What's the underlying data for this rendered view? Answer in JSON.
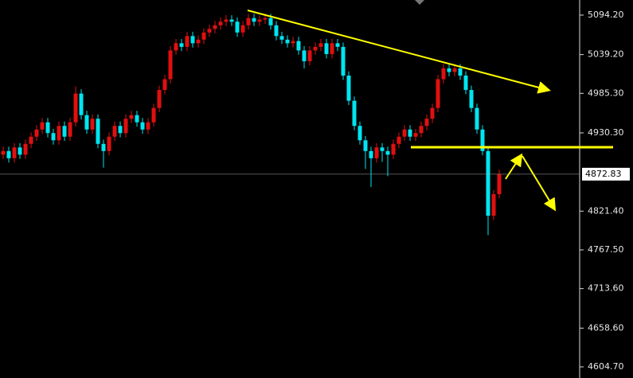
{
  "chart_data": {
    "type": "candlestick",
    "open": [
      4900,
      4905,
      4895,
      4910,
      4900,
      4915,
      4925,
      4935,
      4945,
      4930,
      4920,
      4940,
      4925,
      4945,
      4985,
      4955,
      4935,
      4950,
      4915,
      4905,
      4925,
      4940,
      4930,
      4950,
      4955,
      4945,
      4935,
      4945,
      4965,
      4990,
      5005,
      5045,
      5055,
      5050,
      5065,
      5055,
      5060,
      5070,
      5075,
      5080,
      5085,
      5088,
      5085,
      5070,
      5080,
      5090,
      5085,
      5088,
      5090,
      5080,
      5065,
      5060,
      5055,
      5058,
      5045,
      5030,
      5045,
      5050,
      5055,
      5040,
      5055,
      5050,
      5010,
      4975,
      4940,
      4920,
      4905,
      4895,
      4910,
      4905,
      4900,
      4915,
      4925,
      4935,
      4925,
      4930,
      4940,
      4950,
      4965,
      5005,
      5020,
      5015,
      5020,
      5010,
      4990,
      4965,
      4935,
      4905,
      4815,
      4845
    ],
    "high": [
      4911,
      4911,
      4916,
      4916,
      4921,
      4931,
      4941,
      4951,
      4951,
      4936,
      4946,
      4946,
      4951,
      4995,
      4991,
      4961,
      4956,
      4956,
      4921,
      4931,
      4946,
      4946,
      4956,
      4961,
      4961,
      4951,
      4951,
      4971,
      4996,
      5011,
      5051,
      5061,
      5061,
      5071,
      5071,
      5066,
      5076,
      5081,
      5086,
      5091,
      5094,
      5094,
      5091,
      5086,
      5096,
      5096,
      5094,
      5096,
      5096,
      5086,
      5071,
      5066,
      5064,
      5064,
      5051,
      5051,
      5056,
      5061,
      5061,
      5061,
      5061,
      5056,
      5016,
      4981,
      4946,
      4926,
      4911,
      4916,
      4916,
      4911,
      4921,
      4931,
      4941,
      4941,
      4936,
      4946,
      4956,
      4971,
      5011,
      5026,
      5026,
      5026,
      5026,
      5016,
      4996,
      4971,
      4941,
      4911,
      4851,
      4879
    ],
    "low": [
      4894,
      4889,
      4889,
      4894,
      4894,
      4909,
      4919,
      4929,
      4924,
      4914,
      4914,
      4919,
      4919,
      4939,
      4949,
      4929,
      4929,
      4909,
      4882,
      4899,
      4919,
      4924,
      4924,
      4944,
      4939,
      4929,
      4929,
      4939,
      4959,
      4984,
      4999,
      5039,
      5044,
      5044,
      5049,
      5049,
      5054,
      5064,
      5069,
      5074,
      5079,
      5079,
      5064,
      5064,
      5074,
      5079,
      5079,
      5082,
      5074,
      5059,
      5054,
      5049,
      5049,
      5039,
      5020,
      5024,
      5039,
      5044,
      5034,
      5034,
      5044,
      5004,
      4969,
      4934,
      4914,
      4880,
      4855,
      4889,
      4890,
      4870,
      4894,
      4909,
      4919,
      4919,
      4919,
      4924,
      4934,
      4944,
      4959,
      4999,
      5009,
      5009,
      5004,
      4984,
      4959,
      4929,
      4899,
      4788,
      4809,
      4839
    ],
    "close": [
      4905,
      4895,
      4910,
      4900,
      4915,
      4925,
      4935,
      4945,
      4930,
      4920,
      4940,
      4925,
      4945,
      4985,
      4955,
      4935,
      4950,
      4915,
      4905,
      4925,
      4940,
      4930,
      4950,
      4955,
      4945,
      4935,
      4945,
      4965,
      4990,
      5005,
      5045,
      5055,
      5050,
      5065,
      5055,
      5060,
      5070,
      5075,
      5080,
      5085,
      5088,
      5085,
      5070,
      5080,
      5090,
      5085,
      5088,
      5090,
      5080,
      5065,
      5060,
      5055,
      5058,
      5045,
      5030,
      5045,
      5050,
      5055,
      5040,
      5055,
      5050,
      5010,
      4975,
      4940,
      4920,
      4905,
      4895,
      4910,
      4905,
      4900,
      4915,
      4925,
      4935,
      4925,
      4930,
      4940,
      4950,
      4965,
      5005,
      5020,
      5015,
      5020,
      5010,
      4990,
      4965,
      4935,
      4905,
      4815,
      4845,
      4872.83
    ],
    "up_color": "#e01010",
    "down_color": "#00e5f0",
    "ylim": [
      4589.2,
      5115.2
    ],
    "yticks": [
      {
        "value": 5094.2,
        "label": "5094.20"
      },
      {
        "value": 5039.2,
        "label": "5039.20"
      },
      {
        "value": 4985.3,
        "label": "4985.30"
      },
      {
        "value": 4930.3,
        "label": "4930.30"
      },
      {
        "value": 4821.4,
        "label": "4821.40"
      },
      {
        "value": 4767.5,
        "label": "4767.50"
      },
      {
        "value": 4713.6,
        "label": "4713.60"
      },
      {
        "value": 4658.6,
        "label": "4658.60"
      },
      {
        "value": 4604.7,
        "label": "4604.70"
      }
    ],
    "last_price": 4872.83
  }
}
